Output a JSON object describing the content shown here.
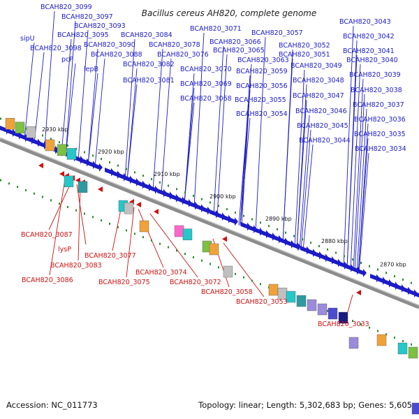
{
  "title": "Bacillus cereus AH820, complete genome",
  "footer": {
    "accession_label": "Accession: NC_011773",
    "summary": "Topology: linear; Length: 5,302,683 bp; Genes: 5,605"
  },
  "colors": {
    "forward": "#1b1bc8",
    "reverse": "#d01010",
    "backbone": "#8c8c8c",
    "tick": "#2a8a2a"
  },
  "ticks": [
    "2930 kbp",
    "2920 kbp",
    "2910 kbp",
    "2900 kbp",
    "2890 kbp",
    "2880 kbp",
    "2870 kbp"
  ],
  "forward_genes": [
    "BCAH820_3099",
    "BCAH820_3097",
    "BCAH820_3093",
    "BCAH820_3095",
    "BCAH820_3098",
    "sipU",
    "pcP",
    "BCAH820_3090",
    "BCAH820_3088",
    "lepB",
    "BCAH820_3084",
    "BCAH820_3078",
    "BCAH820_3076",
    "BCAH820_3082",
    "BCAH820_3081",
    "BCAH820_3071",
    "BCAH820_3066",
    "BCAH820_3065",
    "BCAH820_3070",
    "BCAH820_3069",
    "BCAH820_3068",
    "BCAH820_3057",
    "BCAH820_3063",
    "BCAH820_3059",
    "BCAH820_3056",
    "BCAH820_3055",
    "BCAH820_3054",
    "BCAH820_3052",
    "BCAH820_3051",
    "BCAH820_3049",
    "BCAH820_3048",
    "BCAH820_3047",
    "BCAH820_3046",
    "BCAH820_3045",
    "BCAH820_3044",
    "BCAH820_3043",
    "BCAH820_3042",
    "BCAH820_3041",
    "BCAH820_3040",
    "BCAH820_3039",
    "BCAH820_3038",
    "BCAH820_3037",
    "BCAH820_3036",
    "BCAH820_3035",
    "BCAH820_3034"
  ],
  "reverse_genes": [
    "BCAH820_3087",
    "lysP",
    "BCAH820_3083",
    "BCAH820_3086",
    "BCAH820_3077",
    "BCAH820_3075",
    "BCAH820_3074",
    "BCAH820_3072",
    "BCAH820_3058",
    "BCAH820_3053",
    "BCAH820_3033"
  ]
}
